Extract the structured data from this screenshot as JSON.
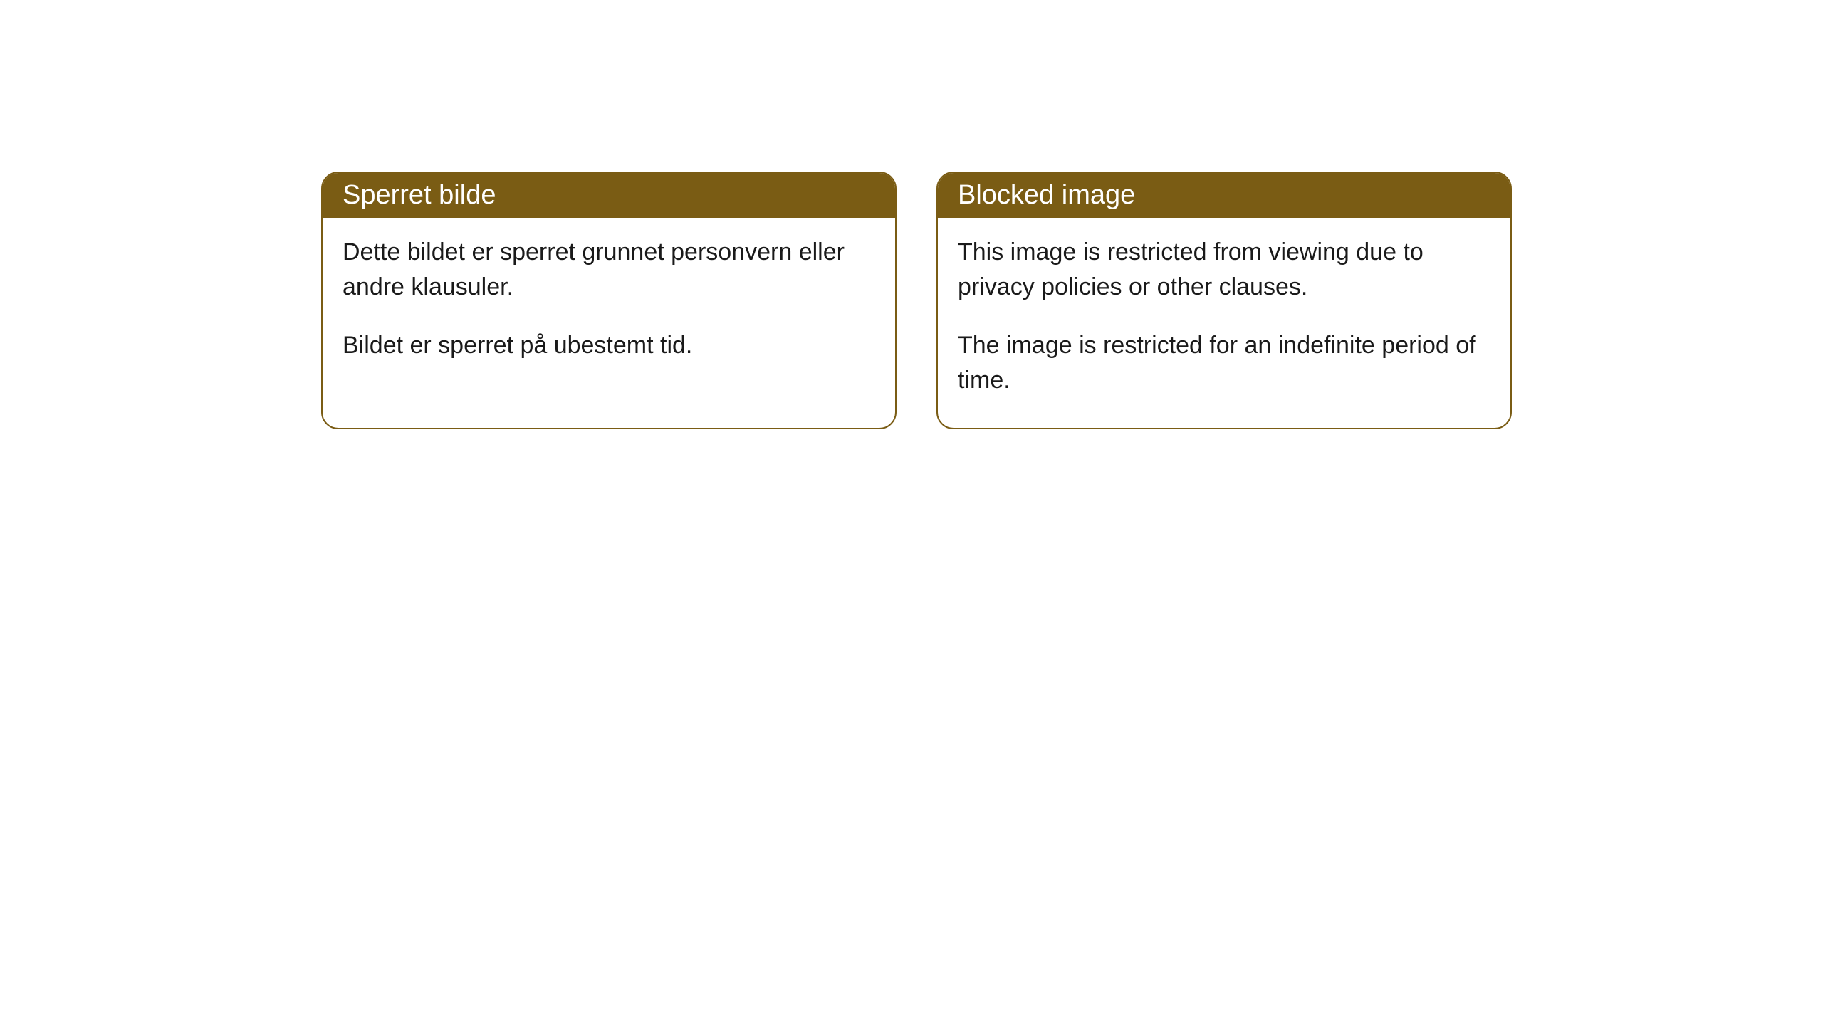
{
  "cards": [
    {
      "title": "Sperret bilde",
      "paragraph1": "Dette bildet er sperret grunnet personvern eller andre klausuler.",
      "paragraph2": "Bildet er sperret på ubestemt tid."
    },
    {
      "title": "Blocked image",
      "paragraph1": "This image is restricted from viewing due to privacy policies or other clauses.",
      "paragraph2": "The image is restricted for an indefinite period of time."
    }
  ],
  "styling": {
    "header_bg": "#7a5c14",
    "header_text": "#ffffff",
    "border_color": "#7a5c14",
    "body_bg": "#ffffff",
    "body_text": "#1a1a1a",
    "border_radius": 24,
    "title_fontsize": 38,
    "body_fontsize": 34
  }
}
